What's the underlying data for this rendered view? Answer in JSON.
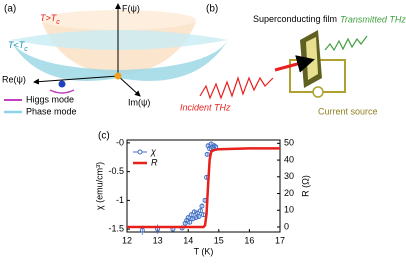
{
  "panel_a": {
    "label": "(a)",
    "t_above": {
      "main": "T>T",
      "sub": "c"
    },
    "t_below": {
      "main": "T<T",
      "sub": "c"
    },
    "f_axis": "F(ψ)",
    "re_axis": "Re(ψ)",
    "im_axis": "Im(ψ)",
    "higgs": "Higgs mode",
    "phase": "Phase mode"
  },
  "panel_b": {
    "label": "(b)",
    "film": "Superconducting film",
    "transmitted": "Transmitted THz",
    "incident": "Incident THz",
    "source": "Current source"
  },
  "chart_data": {
    "type": "scatter",
    "panel_label": "(c)",
    "xlabel": "T (K)",
    "ylabel": "χ (emu/cm³)",
    "y2label": "R (Ω)",
    "xlim": [
      12,
      17
    ],
    "xticks": [
      12,
      13,
      14,
      15,
      16,
      17
    ],
    "ylim": [
      -1.55,
      0.05
    ],
    "yticks": [
      -1.5,
      -1,
      -0.5,
      {
        "value": 0,
        "label": "-0"
      }
    ],
    "y2lim": [
      -3,
      52
    ],
    "y2ticks": [
      0,
      10,
      20,
      30,
      40,
      50
    ],
    "series": [
      {
        "name": "χ",
        "color": "#3f6fc4",
        "x": [
          12.5,
          13.0,
          13.5,
          13.8,
          13.9,
          13.95,
          14.0,
          14.05,
          14.1,
          14.15,
          14.2,
          14.25,
          14.3,
          14.35,
          14.4,
          14.45,
          14.5,
          14.55,
          14.6,
          14.62,
          14.65,
          14.7,
          14.75,
          14.8,
          14.85,
          14.9
        ],
        "values": [
          -1.52,
          -1.5,
          -1.5,
          -1.48,
          -1.4,
          -1.35,
          -1.3,
          -1.38,
          -1.25,
          -1.32,
          -1.2,
          -1.3,
          -1.22,
          -1.28,
          -1.18,
          -1.1,
          -1.25,
          -1.0,
          -0.6,
          -0.2,
          -0.05,
          -0.1,
          -0.02,
          -0.08,
          -0.05,
          -0.07
        ],
        "errors": [
          0.08,
          0.08,
          0.04,
          0.04,
          0.04,
          0.04,
          0.04,
          0.04,
          0.04,
          0.04,
          0.04,
          0.04,
          0.04,
          0.04,
          0.04,
          0.04,
          0.04,
          0.04,
          0.04,
          0.04,
          0.04,
          0.04,
          0.04,
          0.04,
          0.04,
          0.04
        ]
      },
      {
        "name": "R",
        "color": "#e8201c",
        "axis": "y2",
        "x": [
          12,
          14.5,
          14.55,
          14.6,
          14.65,
          14.7,
          14.75,
          14.85,
          15,
          16,
          17
        ],
        "values": [
          0,
          0,
          1,
          8,
          25,
          40,
          45,
          46,
          46.5,
          47,
          47
        ]
      }
    ]
  }
}
